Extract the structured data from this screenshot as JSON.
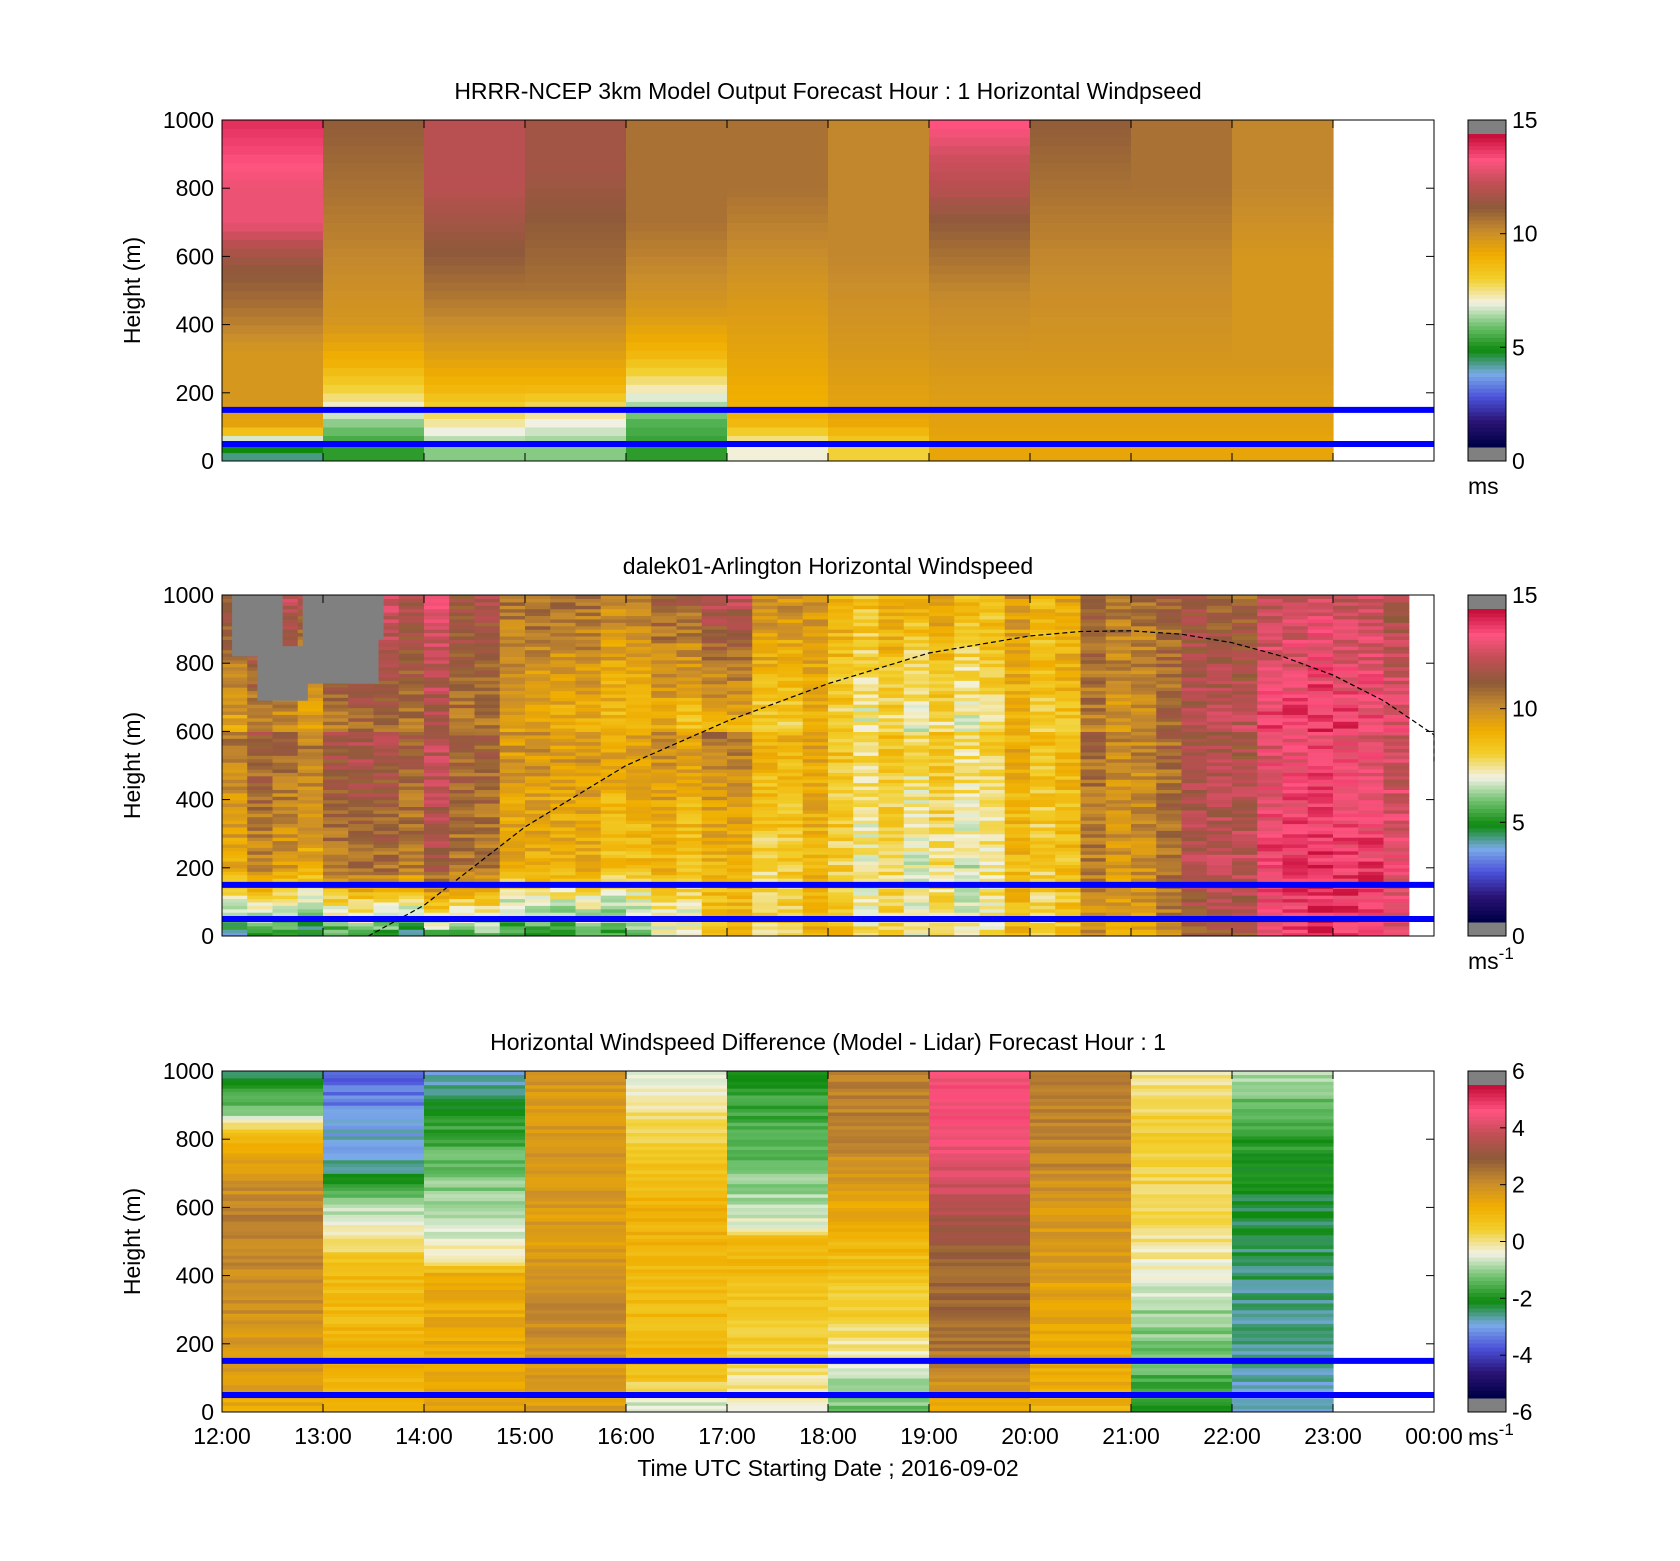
{
  "chart_data": [
    {
      "type": "heatmap",
      "title": "HRRR-NCEP 3km Model Output   Forecast Hour : 1 Horizontal Windpseed",
      "ylabel": "Height (m)",
      "xlabel": "",
      "ylim": [
        0,
        1000
      ],
      "yticks": [
        "0",
        "200",
        "400",
        "600",
        "800",
        "1000"
      ],
      "colorbar": {
        "min": 0,
        "max": 15,
        "ticks": [
          "0",
          "5",
          "10",
          "15"
        ],
        "unit_base": "ms",
        "unit_sup": ""
      },
      "x_hours": [
        0,
        1,
        2,
        3,
        4,
        5,
        6,
        7,
        8,
        9,
        10
      ],
      "profiles": [
        [
          {
            "z": 30,
            "v": 4
          },
          {
            "z": 60,
            "v": 6.5
          },
          {
            "z": 100,
            "v": 9.5
          },
          {
            "z": 180,
            "v": 10
          },
          {
            "z": 320,
            "v": 10
          },
          {
            "z": 450,
            "v": 11
          },
          {
            "z": 540,
            "v": 11.5
          },
          {
            "z": 600,
            "v": 12
          },
          {
            "z": 700,
            "v": 13.5
          },
          {
            "z": 800,
            "v": 13.5
          },
          {
            "z": 1000,
            "v": 14.5
          }
        ],
        [
          {
            "z": 40,
            "v": 5
          },
          {
            "z": 110,
            "v": 6
          },
          {
            "z": 180,
            "v": 7.5
          },
          {
            "z": 280,
            "v": 9
          },
          {
            "z": 400,
            "v": 10
          },
          {
            "z": 600,
            "v": 10.5
          },
          {
            "z": 800,
            "v": 11
          },
          {
            "z": 1000,
            "v": 11.5
          }
        ],
        [
          {
            "z": 40,
            "v": 6
          },
          {
            "z": 120,
            "v": 7.5
          },
          {
            "z": 220,
            "v": 9
          },
          {
            "z": 350,
            "v": 10
          },
          {
            "z": 500,
            "v": 11
          },
          {
            "z": 600,
            "v": 11.5
          },
          {
            "z": 800,
            "v": 12.5
          },
          {
            "z": 1000,
            "v": 12.5
          }
        ],
        [
          {
            "z": 40,
            "v": 6
          },
          {
            "z": 120,
            "v": 7
          },
          {
            "z": 220,
            "v": 9
          },
          {
            "z": 350,
            "v": 10
          },
          {
            "z": 500,
            "v": 11
          },
          {
            "z": 700,
            "v": 11.5
          },
          {
            "z": 850,
            "v": 12
          },
          {
            "z": 1000,
            "v": 12
          }
        ],
        [
          {
            "z": 40,
            "v": 5
          },
          {
            "z": 120,
            "v": 5.5
          },
          {
            "z": 200,
            "v": 7
          },
          {
            "z": 260,
            "v": 8
          },
          {
            "z": 320,
            "v": 9
          },
          {
            "z": 450,
            "v": 10
          },
          {
            "z": 700,
            "v": 11
          },
          {
            "z": 1000,
            "v": 11
          }
        ],
        [
          {
            "z": 40,
            "v": 7
          },
          {
            "z": 120,
            "v": 9
          },
          {
            "z": 300,
            "v": 9.5
          },
          {
            "z": 500,
            "v": 10
          },
          {
            "z": 800,
            "v": 11
          },
          {
            "z": 1000,
            "v": 11
          }
        ],
        [
          {
            "z": 40,
            "v": 8
          },
          {
            "z": 120,
            "v": 9.5
          },
          {
            "z": 350,
            "v": 10
          },
          {
            "z": 600,
            "v": 10.5
          },
          {
            "z": 1000,
            "v": 10.5
          }
        ],
        [
          {
            "z": 50,
            "v": 9.5
          },
          {
            "z": 300,
            "v": 10
          },
          {
            "z": 500,
            "v": 10.5
          },
          {
            "z": 700,
            "v": 11.5
          },
          {
            "z": 800,
            "v": 12.5
          },
          {
            "z": 900,
            "v": 13
          },
          {
            "z": 1000,
            "v": 14
          }
        ],
        [
          {
            "z": 50,
            "v": 9.5
          },
          {
            "z": 300,
            "v": 10
          },
          {
            "z": 600,
            "v": 10.5
          },
          {
            "z": 800,
            "v": 11
          },
          {
            "z": 1000,
            "v": 11.5
          }
        ],
        [
          {
            "z": 50,
            "v": 9.5
          },
          {
            "z": 300,
            "v": 10
          },
          {
            "z": 600,
            "v": 10.5
          },
          {
            "z": 800,
            "v": 11
          },
          {
            "z": 1000,
            "v": 11
          }
        ],
        [
          {
            "z": 50,
            "v": 9.5
          },
          {
            "z": 300,
            "v": 10
          },
          {
            "z": 600,
            "v": 10
          },
          {
            "z": 800,
            "v": 10.5
          },
          {
            "z": 1000,
            "v": 10.5
          }
        ]
      ],
      "reference_lines_m": [
        50,
        150
      ]
    },
    {
      "type": "heatmap",
      "title": "dalek01-Arlington  Horizontal Windspeed",
      "ylabel": "Height (m)",
      "xlabel": "",
      "ylim": [
        0,
        1000
      ],
      "yticks": [
        "0",
        "200",
        "400",
        "600",
        "800",
        "1000"
      ],
      "colorbar": {
        "min": 0,
        "max": 15,
        "ticks": [
          "0",
          "5",
          "10",
          "15"
        ],
        "unit_base": "ms",
        "unit_sup": "-1"
      },
      "x_start_hours": 0,
      "x_step_hours": 0.25,
      "column_count": 47,
      "anchors": [
        {
          "h": 0.0,
          "s": 4.5,
          "m": 10,
          "t": 12.5
        },
        {
          "h": 1.0,
          "s": 4.0,
          "m": 9.5,
          "t": 12.5
        },
        {
          "h": 2.0,
          "s": 4.5,
          "m": 11.5,
          "t": 13.0
        },
        {
          "h": 2.5,
          "s": 5.5,
          "m": 10.5,
          "t": 11.5
        },
        {
          "h": 3.0,
          "s": 5.0,
          "m": 9.5,
          "t": 11.5
        },
        {
          "h": 4.0,
          "s": 5.5,
          "m": 9.0,
          "t": 11.0
        },
        {
          "h": 5.0,
          "s": 8.0,
          "m": 8.5,
          "t": 12.5
        },
        {
          "h": 6.0,
          "s": 8.5,
          "m": 8.0,
          "t": 9.0
        },
        {
          "h": 7.0,
          "s": 7.5,
          "m": 7.0,
          "t": 9.5
        },
        {
          "h": 8.0,
          "s": 8.5,
          "m": 8.5,
          "t": 9.5
        },
        {
          "h": 9.0,
          "s": 10.0,
          "m": 10.5,
          "t": 11.5
        },
        {
          "h": 10.0,
          "s": 12.0,
          "m": 13.0,
          "t": 11.5
        },
        {
          "h": 11.0,
          "s": 14.0,
          "m": 14.0,
          "t": 12.5
        },
        {
          "h": 11.75,
          "s": 14.0,
          "m": 14.0,
          "t": 12.5
        }
      ],
      "missing_data_regions": [
        {
          "x0": 0.1,
          "x1": 0.6,
          "z0": 820,
          "z1": 1000
        },
        {
          "x0": 0.35,
          "x1": 0.85,
          "z0": 690,
          "z1": 850
        },
        {
          "x0": 0.8,
          "x1": 1.55,
          "z0": 740,
          "z1": 1000
        },
        {
          "x0": 0.8,
          "x1": 1.6,
          "z0": 870,
          "z1": 1000
        }
      ],
      "boundary_layer_curve": [
        {
          "h": 1.45,
          "z": 0
        },
        {
          "h": 2,
          "z": 90
        },
        {
          "h": 3,
          "z": 320
        },
        {
          "h": 4,
          "z": 500
        },
        {
          "h": 5,
          "z": 630
        },
        {
          "h": 6,
          "z": 740
        },
        {
          "h": 7,
          "z": 830
        },
        {
          "h": 8,
          "z": 880
        },
        {
          "h": 8.5,
          "z": 893
        },
        {
          "h": 9,
          "z": 895
        },
        {
          "h": 9.5,
          "z": 885
        },
        {
          "h": 10,
          "z": 860
        },
        {
          "h": 10.5,
          "z": 820
        },
        {
          "h": 11,
          "z": 765
        },
        {
          "h": 11.5,
          "z": 690
        },
        {
          "h": 12,
          "z": 590
        },
        {
          "h": 12,
          "z": 510
        }
      ],
      "reference_lines_m": [
        50,
        150
      ]
    },
    {
      "type": "heatmap",
      "title": "Horizontal Windspeed Difference (Model - Lidar) Forecast Hour : 1",
      "ylabel": "Height (m)",
      "xlabel": "Time UTC  Starting Date ; 2016-09-02",
      "ylim": [
        0,
        1000
      ],
      "yticks": [
        "0",
        "200",
        "400",
        "600",
        "800",
        "1000"
      ],
      "xticks": [
        "12:00",
        "13:00",
        "14:00",
        "15:00",
        "16:00",
        "17:00",
        "18:00",
        "19:00",
        "20:00",
        "21:00",
        "22:00",
        "23:00",
        "00:00"
      ],
      "colorbar": {
        "min": -6,
        "max": 6,
        "ticks": [
          "-6",
          "-4",
          "-2",
          "0",
          "2",
          "4",
          "6"
        ],
        "unit_base": "ms",
        "unit_sup": "-1"
      },
      "x_hours": [
        0,
        1,
        2,
        3,
        4,
        5,
        6,
        7,
        8,
        9,
        10
      ],
      "profiles": [
        [
          {
            "z": 0,
            "v": 1.5
          },
          {
            "z": 300,
            "v": 2.2
          },
          {
            "z": 600,
            "v": 2.5
          },
          {
            "z": 800,
            "v": 1.3
          },
          {
            "z": 880,
            "v": -1.3
          },
          {
            "z": 1000,
            "v": -2.5
          }
        ],
        [
          {
            "z": 0,
            "v": 1.3
          },
          {
            "z": 400,
            "v": 1
          },
          {
            "z": 520,
            "v": 0
          },
          {
            "z": 640,
            "v": -1.5
          },
          {
            "z": 730,
            "v": -3
          },
          {
            "z": 820,
            "v": -3.2
          },
          {
            "z": 900,
            "v": -3.6
          },
          {
            "z": 1000,
            "v": -4
          }
        ],
        [
          {
            "z": 0,
            "v": 1.5
          },
          {
            "z": 400,
            "v": 1.5
          },
          {
            "z": 450,
            "v": 0
          },
          {
            "z": 560,
            "v": -1
          },
          {
            "z": 700,
            "v": -1.3
          },
          {
            "z": 850,
            "v": -2
          },
          {
            "z": 1000,
            "v": -3.2
          }
        ],
        [
          {
            "z": 0,
            "v": 1.8
          },
          {
            "z": 300,
            "v": 2.3
          },
          {
            "z": 500,
            "v": 1.8
          },
          {
            "z": 700,
            "v": 2
          },
          {
            "z": 1000,
            "v": 2
          }
        ],
        [
          {
            "z": 0,
            "v": -1
          },
          {
            "z": 120,
            "v": 1
          },
          {
            "z": 400,
            "v": 1
          },
          {
            "z": 600,
            "v": 1.3
          },
          {
            "z": 800,
            "v": 0.5
          },
          {
            "z": 900,
            "v": 0
          },
          {
            "z": 1000,
            "v": -0.5
          }
        ],
        [
          {
            "z": 0,
            "v": -0.5
          },
          {
            "z": 200,
            "v": 0.5
          },
          {
            "z": 500,
            "v": 1.2
          },
          {
            "z": 550,
            "v": -0.5
          },
          {
            "z": 700,
            "v": -1.3
          },
          {
            "z": 850,
            "v": -1.8
          },
          {
            "z": 1000,
            "v": -2
          }
        ],
        [
          {
            "z": 0,
            "v": -1.5
          },
          {
            "z": 250,
            "v": 0.3
          },
          {
            "z": 400,
            "v": 0.8
          },
          {
            "z": 600,
            "v": 1.5
          },
          {
            "z": 800,
            "v": 2.5
          },
          {
            "z": 1000,
            "v": 2.5
          }
        ],
        [
          {
            "z": 0,
            "v": 1.5
          },
          {
            "z": 200,
            "v": 2.8
          },
          {
            "z": 500,
            "v": 3.2
          },
          {
            "z": 600,
            "v": 4
          },
          {
            "z": 700,
            "v": 4.5
          },
          {
            "z": 850,
            "v": 5
          },
          {
            "z": 1000,
            "v": 5
          }
        ],
        [
          {
            "z": 0,
            "v": 1.3
          },
          {
            "z": 300,
            "v": 1.6
          },
          {
            "z": 600,
            "v": 2
          },
          {
            "z": 800,
            "v": 2.5
          },
          {
            "z": 1000,
            "v": 2.5
          }
        ],
        [
          {
            "z": 0,
            "v": -2
          },
          {
            "z": 300,
            "v": -1
          },
          {
            "z": 500,
            "v": 0
          },
          {
            "z": 600,
            "v": 0.3
          },
          {
            "z": 800,
            "v": 0.5
          },
          {
            "z": 1000,
            "v": 0
          }
        ],
        [
          {
            "z": 0,
            "v": -3
          },
          {
            "z": 300,
            "v": -2.8
          },
          {
            "z": 600,
            "v": -2.5
          },
          {
            "z": 800,
            "v": -2
          },
          {
            "z": 900,
            "v": -1.5
          },
          {
            "z": 1000,
            "v": -1
          }
        ]
      ],
      "reference_lines_m": [
        50,
        150
      ]
    }
  ],
  "colors": {
    "reference_line": "#0000ff",
    "missing": "#808080",
    "windspeed_scale": [
      "#000048",
      "#2a1475",
      "#4a50d8",
      "#7aaae8",
      "#0e8a0e",
      "#6cc06c",
      "#f2f2e4",
      "#f2cf2c",
      "#f0ad00",
      "#c88c2c",
      "#8e5a3a",
      "#c04e55",
      "#ff5380",
      "#c8103c"
    ],
    "difference_scale": [
      "#000048",
      "#2a1475",
      "#4a50d8",
      "#7aaae8",
      "#0e8a0e",
      "#6cc06c",
      "#f2f2e4",
      "#f2cf2c",
      "#f0ad00",
      "#c88c2c",
      "#8e5a3a",
      "#c04e55",
      "#ff5380",
      "#c8103c"
    ]
  }
}
